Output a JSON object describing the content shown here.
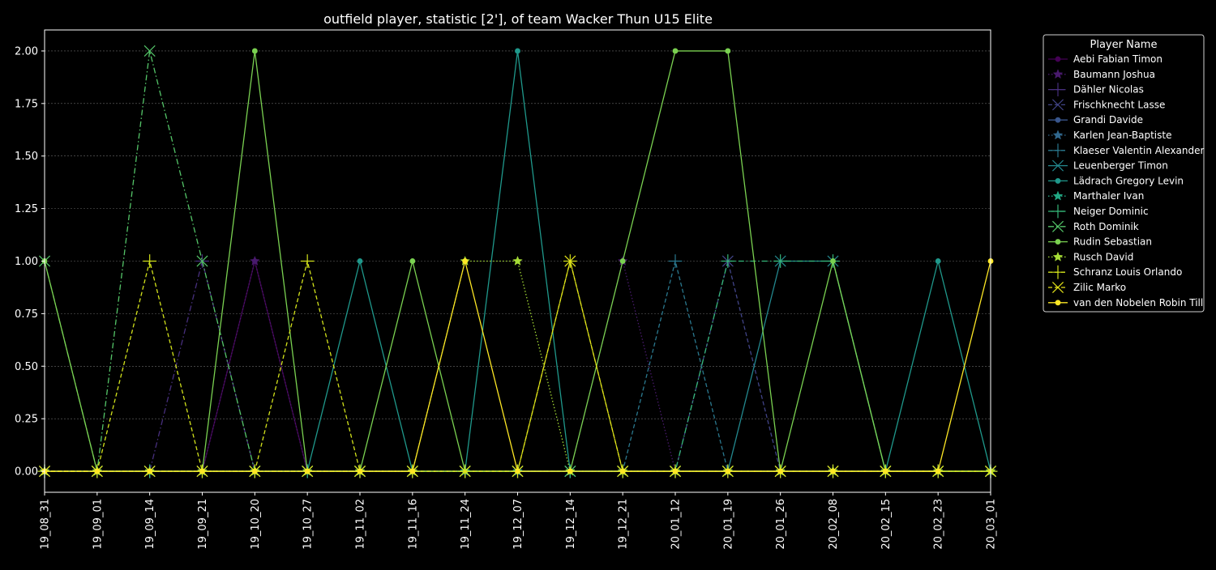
{
  "chart_data": {
    "type": "line",
    "title": "outfield player, statistic [2'], of team Wacker Thun U15 Elite",
    "xlabel": "",
    "ylabel": "",
    "ylim": [
      -0.1,
      2.1
    ],
    "yticks": [
      "0.00",
      "0.25",
      "0.50",
      "0.75",
      "1.00",
      "1.25",
      "1.50",
      "1.75",
      "2.00"
    ],
    "grid": "horizontal, dashed",
    "legend_title": "Player Name",
    "legend_placement": "outside-right",
    "categories": [
      "19_08_31",
      "19_09_01",
      "19_09_14",
      "19_09_21",
      "19_10_20",
      "19_10_27",
      "19_11_02",
      "19_11_16",
      "19_11_24",
      "19_12_07",
      "19_12_14",
      "19_12_21",
      "20_01_12",
      "20_01_19",
      "20_01_26",
      "20_02_08",
      "20_02_15",
      "20_02_23",
      "20_03_01"
    ],
    "series": [
      {
        "name": "Aebi Fabian Timon",
        "color": "#440154",
        "marker": "o",
        "linestyle": "solid",
        "values": [
          0,
          0,
          0,
          0,
          1,
          0,
          0,
          0,
          0,
          0,
          0,
          0,
          0,
          0,
          0,
          0,
          0,
          0,
          0
        ]
      },
      {
        "name": "Baumann Joshua",
        "color": "#481a6c",
        "marker": "*",
        "linestyle": "dotted",
        "values": [
          0,
          0,
          0,
          0,
          1,
          0,
          0,
          0,
          0,
          0,
          0,
          1,
          0,
          0,
          0,
          0,
          0,
          0,
          0
        ]
      },
      {
        "name": "Dähler Nicolas",
        "color": "#472f7d",
        "marker": "+",
        "linestyle": "dashdot",
        "values": [
          0,
          0,
          0,
          1,
          0,
          0,
          0,
          0,
          0,
          0,
          0,
          0,
          0,
          0,
          0,
          0,
          0,
          0,
          0
        ]
      },
      {
        "name": "Frischknecht Lasse",
        "color": "#414487",
        "marker": "x",
        "linestyle": "dashed",
        "values": [
          0,
          0,
          0,
          0,
          0,
          0,
          0,
          0,
          0,
          0,
          0,
          0,
          0,
          1,
          0,
          0,
          0,
          0,
          0
        ]
      },
      {
        "name": "Grandi Davide",
        "color": "#39568c",
        "marker": "o",
        "linestyle": "solid",
        "values": [
          0,
          0,
          0,
          0,
          0,
          0,
          0,
          0,
          0,
          0,
          0,
          0,
          0,
          0,
          0,
          0,
          0,
          0,
          0
        ]
      },
      {
        "name": "Karlen Jean-Baptiste",
        "color": "#31688e",
        "marker": "*",
        "linestyle": "dotted",
        "values": [
          0,
          0,
          0,
          0,
          0,
          0,
          0,
          0,
          0,
          0,
          0,
          0,
          0,
          0,
          0,
          0,
          0,
          0,
          0
        ]
      },
      {
        "name": "Klaeser Valentin Alexander",
        "color": "#2a788e",
        "marker": "+",
        "linestyle": "dashed",
        "values": [
          0,
          0,
          0,
          0,
          0,
          0,
          0,
          0,
          0,
          0,
          0,
          0,
          1,
          0,
          0,
          0,
          0,
          0,
          0
        ]
      },
      {
        "name": "Leuenberger Timon",
        "color": "#23888e",
        "marker": "x",
        "linestyle": "solid",
        "values": [
          0,
          0,
          0,
          0,
          0,
          0,
          0,
          0,
          0,
          0,
          0,
          0,
          0,
          0,
          1,
          1,
          0,
          0,
          0
        ]
      },
      {
        "name": "Lädrach Gregory Levin",
        "color": "#1f988b",
        "marker": "o",
        "linestyle": "solid",
        "values": [
          0,
          0,
          0,
          0,
          0,
          0,
          1,
          0,
          0,
          2,
          0,
          0,
          0,
          0,
          0,
          0,
          0,
          1,
          0
        ]
      },
      {
        "name": "Marthaler Ivan",
        "color": "#22a884",
        "marker": "*",
        "linestyle": "dotted",
        "values": [
          0,
          0,
          0,
          0,
          0,
          0,
          0,
          0,
          0,
          0,
          0,
          0,
          0,
          0,
          0,
          0,
          0,
          0,
          0
        ]
      },
      {
        "name": "Neiger Dominic",
        "color": "#35b779",
        "marker": "+",
        "linestyle": "dashdot",
        "values": [
          0,
          0,
          0,
          0,
          0,
          0,
          0,
          0,
          0,
          0,
          0,
          0,
          0,
          1,
          1,
          1,
          0,
          0,
          0
        ]
      },
      {
        "name": "Roth Dominik",
        "color": "#54c568",
        "marker": "x",
        "linestyle": "dashdot",
        "values": [
          1,
          0,
          2,
          1,
          0,
          0,
          0,
          0,
          0,
          0,
          0,
          0,
          0,
          0,
          0,
          0,
          0,
          0,
          0
        ]
      },
      {
        "name": "Rudin Sebastian",
        "color": "#7ad151",
        "marker": "o",
        "linestyle": "solid",
        "values": [
          1,
          0,
          0,
          0,
          2,
          0,
          0,
          1,
          0,
          0,
          0,
          1,
          2,
          2,
          0,
          1,
          0,
          0,
          0
        ]
      },
      {
        "name": "Rusch David",
        "color": "#a5db36",
        "marker": "*",
        "linestyle": "dotted",
        "values": [
          0,
          0,
          0,
          0,
          0,
          0,
          0,
          0,
          1,
          1,
          0,
          0,
          0,
          0,
          0,
          0,
          0,
          0,
          0
        ]
      },
      {
        "name": "Schranz Louis Orlando",
        "color": "#d2e21b",
        "marker": "+",
        "linestyle": "dashed",
        "values": [
          0,
          0,
          1,
          0,
          0,
          1,
          0,
          0,
          0,
          0,
          1,
          0,
          0,
          0,
          0,
          0,
          0,
          0,
          0
        ]
      },
      {
        "name": "Zilic Marko",
        "color": "#e5e419",
        "marker": "x",
        "linestyle": "dashed",
        "values": [
          0,
          0,
          0,
          0,
          0,
          0,
          0,
          0,
          0,
          0,
          1,
          0,
          0,
          0,
          0,
          0,
          0,
          0,
          0
        ]
      },
      {
        "name": "van den Nobelen Robin Till",
        "color": "#fde725",
        "marker": "o",
        "linestyle": "solid",
        "values": [
          0,
          0,
          0,
          0,
          0,
          0,
          0,
          0,
          1,
          0,
          0,
          0,
          0,
          0,
          0,
          0,
          0,
          0,
          1
        ]
      }
    ]
  }
}
